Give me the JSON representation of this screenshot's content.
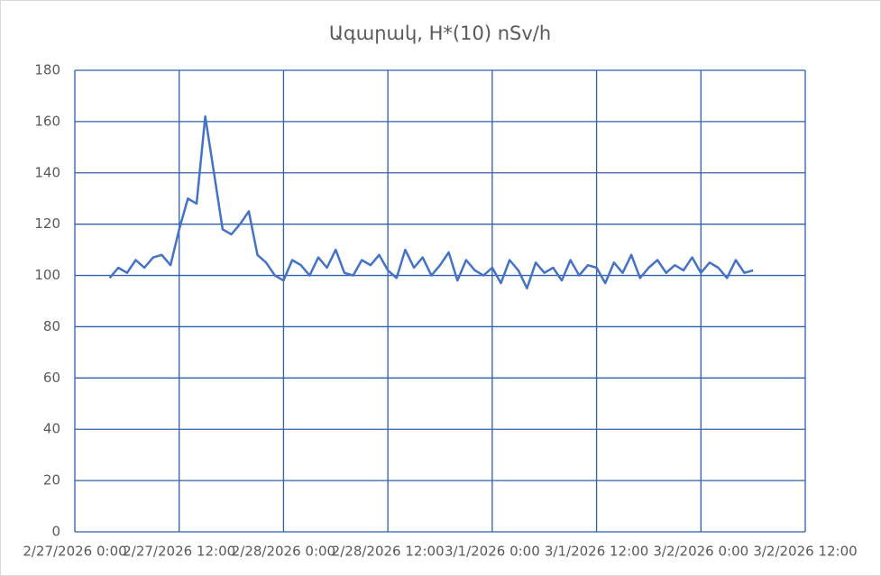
{
  "chart_data": {
    "type": "line",
    "title": "Ագարակ, H*(10) nSv/h",
    "x": [
      "2/27/2026 4:00",
      "2/27/2026 5:00",
      "2/27/2026 6:00",
      "2/27/2026 7:00",
      "2/27/2026 8:00",
      "2/27/2026 9:00",
      "2/27/2026 10:00",
      "2/27/2026 11:00",
      "2/27/2026 12:00",
      "2/27/2026 13:00",
      "2/27/2026 14:00",
      "2/27/2026 15:00",
      "2/27/2026 16:00",
      "2/27/2026 17:00",
      "2/27/2026 18:00",
      "2/27/2026 19:00",
      "2/27/2026 20:00",
      "2/27/2026 21:00",
      "2/27/2026 22:00",
      "2/27/2026 23:00",
      "2/28/2026 0:00",
      "2/28/2026 1:00",
      "2/28/2026 2:00",
      "2/28/2026 3:00",
      "2/28/2026 4:00",
      "2/28/2026 5:00",
      "2/28/2026 6:00",
      "2/28/2026 7:00",
      "2/28/2026 8:00",
      "2/28/2026 9:00",
      "2/28/2026 10:00",
      "2/28/2026 11:00",
      "2/28/2026 12:00",
      "2/28/2026 13:00",
      "2/28/2026 14:00",
      "2/28/2026 15:00",
      "2/28/2026 16:00",
      "2/28/2026 17:00",
      "2/28/2026 18:00",
      "2/28/2026 19:00",
      "2/28/2026 20:00",
      "2/28/2026 21:00",
      "2/28/2026 22:00",
      "2/28/2026 23:00",
      "3/1/2026 0:00",
      "3/1/2026 1:00",
      "3/1/2026 2:00",
      "3/1/2026 3:00",
      "3/1/2026 4:00",
      "3/1/2026 5:00",
      "3/1/2026 6:00",
      "3/1/2026 7:00",
      "3/1/2026 8:00",
      "3/1/2026 9:00",
      "3/1/2026 10:00",
      "3/1/2026 11:00",
      "3/1/2026 12:00",
      "3/1/2026 13:00",
      "3/1/2026 14:00",
      "3/1/2026 15:00",
      "3/1/2026 16:00",
      "3/1/2026 17:00",
      "3/1/2026 18:00",
      "3/1/2026 19:00",
      "3/1/2026 20:00",
      "3/1/2026 21:00",
      "3/1/2026 22:00",
      "3/1/2026 23:00",
      "3/2/2026 0:00",
      "3/2/2026 1:00",
      "3/2/2026 2:00",
      "3/2/2026 3:00",
      "3/2/2026 4:00",
      "3/2/2026 5:00",
      "3/2/2026 6:00"
    ],
    "values": [
      99,
      103,
      101,
      106,
      103,
      107,
      108,
      104,
      118,
      130,
      128,
      162,
      140,
      118,
      116,
      120,
      125,
      108,
      105,
      100,
      98,
      106,
      104,
      100,
      107,
      103,
      110,
      101,
      100,
      106,
      104,
      108,
      102,
      99,
      110,
      103,
      107,
      100,
      104,
      109,
      98,
      106,
      102,
      100,
      103,
      97,
      106,
      102,
      95,
      105,
      101,
      103,
      98,
      106,
      100,
      104,
      103,
      97,
      105,
      101,
      108,
      99,
      103,
      106,
      101,
      104,
      102,
      107,
      101,
      105,
      103,
      99,
      106,
      101,
      102
    ],
    "color": "#4472c4",
    "xlim": [
      "2/27/2026 0:00",
      "3/2/2026 12:00"
    ],
    "xticks": [
      "2/27/2026 0:00",
      "2/27/2026 12:00",
      "2/28/2026 0:00",
      "2/28/2026 12:00",
      "3/1/2026 0:00",
      "3/1/2026 12:00",
      "3/2/2026 0:00",
      "3/2/2026 12:00"
    ],
    "ylim": [
      0,
      180
    ],
    "yticks": [
      0,
      20,
      40,
      60,
      80,
      100,
      120,
      140,
      160,
      180
    ],
    "grid": true
  }
}
